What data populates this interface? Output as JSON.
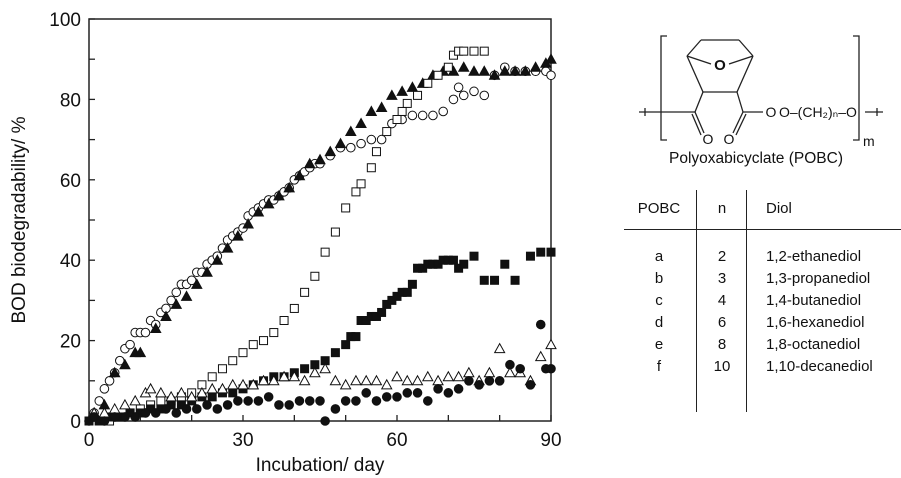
{
  "chart_data": {
    "type": "scatter",
    "xlabel": "Incubation/ day",
    "ylabel": "BOD biodegradability/ %",
    "xlim": [
      0,
      90
    ],
    "ylim": [
      0,
      100
    ],
    "x_ticks": [
      "0",
      "30",
      "60",
      "90"
    ],
    "y_ticks": [
      "0",
      "20",
      "40",
      "60",
      "80",
      "100"
    ],
    "grid": false,
    "legend": "none",
    "series": [
      {
        "marker": "open-circle",
        "points": [
          [
            0,
            0
          ],
          [
            1,
            2
          ],
          [
            2,
            5
          ],
          [
            3,
            8
          ],
          [
            4,
            10
          ],
          [
            5,
            12
          ],
          [
            6,
            15
          ],
          [
            7,
            18
          ],
          [
            8,
            19
          ],
          [
            9,
            22
          ],
          [
            10,
            22
          ],
          [
            11,
            22
          ],
          [
            12,
            25
          ],
          [
            13,
            24
          ],
          [
            14,
            27
          ],
          [
            15,
            28
          ],
          [
            16,
            30
          ],
          [
            17,
            32
          ],
          [
            18,
            34
          ],
          [
            19,
            34
          ],
          [
            20,
            35
          ],
          [
            21,
            37
          ],
          [
            22,
            37
          ],
          [
            23,
            39
          ],
          [
            24,
            40
          ],
          [
            25,
            41
          ],
          [
            26,
            43
          ],
          [
            27,
            45
          ],
          [
            28,
            46
          ],
          [
            29,
            47
          ],
          [
            30,
            48
          ],
          [
            31,
            51
          ],
          [
            32,
            52
          ],
          [
            33,
            53
          ],
          [
            34,
            54
          ],
          [
            35,
            55
          ],
          [
            36,
            55
          ],
          [
            37,
            56
          ],
          [
            38,
            57
          ],
          [
            39,
            58
          ],
          [
            40,
            60
          ],
          [
            41,
            61
          ],
          [
            42,
            62
          ],
          [
            43,
            63
          ],
          [
            44,
            64
          ],
          [
            45,
            64
          ],
          [
            47,
            66
          ],
          [
            49,
            68
          ],
          [
            51,
            68
          ],
          [
            53,
            69
          ],
          [
            55,
            70
          ],
          [
            57,
            70
          ],
          [
            59,
            74
          ],
          [
            61,
            75
          ],
          [
            63,
            76
          ],
          [
            65,
            76
          ],
          [
            67,
            76
          ],
          [
            69,
            77
          ],
          [
            71,
            80
          ],
          [
            72,
            83
          ],
          [
            73,
            81
          ],
          [
            75,
            82
          ],
          [
            77,
            81
          ],
          [
            79,
            86
          ],
          [
            81,
            88
          ],
          [
            83,
            87
          ],
          [
            85,
            87
          ],
          [
            87,
            87
          ],
          [
            89,
            87
          ],
          [
            90,
            86
          ]
        ]
      },
      {
        "marker": "filled-triangle",
        "points": [
          [
            1,
            2
          ],
          [
            3,
            4
          ],
          [
            5,
            12
          ],
          [
            7,
            14
          ],
          [
            9,
            17
          ],
          [
            10,
            17
          ],
          [
            13,
            23
          ],
          [
            15,
            26
          ],
          [
            17,
            29
          ],
          [
            19,
            31
          ],
          [
            21,
            34
          ],
          [
            23,
            37
          ],
          [
            25,
            40
          ],
          [
            27,
            43
          ],
          [
            29,
            46
          ],
          [
            31,
            49
          ],
          [
            33,
            52
          ],
          [
            35,
            54
          ],
          [
            37,
            56
          ],
          [
            39,
            58
          ],
          [
            41,
            61
          ],
          [
            43,
            64
          ],
          [
            45,
            65
          ],
          [
            47,
            67
          ],
          [
            49,
            69
          ],
          [
            51,
            72
          ],
          [
            53,
            74
          ],
          [
            55,
            77
          ],
          [
            57,
            78
          ],
          [
            59,
            81
          ],
          [
            61,
            82
          ],
          [
            63,
            83
          ],
          [
            65,
            84
          ],
          [
            67,
            86
          ],
          [
            69,
            87
          ],
          [
            71,
            87
          ],
          [
            73,
            88
          ],
          [
            75,
            87
          ],
          [
            77,
            87
          ],
          [
            79,
            86
          ],
          [
            81,
            87
          ],
          [
            83,
            87
          ],
          [
            85,
            87
          ],
          [
            87,
            88
          ],
          [
            89,
            89
          ],
          [
            90,
            90
          ]
        ]
      },
      {
        "marker": "open-square",
        "points": [
          [
            0,
            0
          ],
          [
            2,
            0
          ],
          [
            4,
            0
          ],
          [
            6,
            1
          ],
          [
            8,
            2
          ],
          [
            10,
            3
          ],
          [
            12,
            4
          ],
          [
            14,
            5
          ],
          [
            16,
            5
          ],
          [
            18,
            6
          ],
          [
            20,
            7
          ],
          [
            22,
            9
          ],
          [
            24,
            11
          ],
          [
            26,
            13
          ],
          [
            28,
            15
          ],
          [
            30,
            17
          ],
          [
            32,
            19
          ],
          [
            34,
            20
          ],
          [
            36,
            22
          ],
          [
            38,
            25
          ],
          [
            40,
            28
          ],
          [
            42,
            32
          ],
          [
            44,
            36
          ],
          [
            46,
            42
          ],
          [
            48,
            47
          ],
          [
            50,
            53
          ],
          [
            52,
            57
          ],
          [
            53,
            59
          ],
          [
            55,
            63
          ],
          [
            56,
            67
          ],
          [
            58,
            72
          ],
          [
            60,
            75
          ],
          [
            61,
            77
          ],
          [
            62,
            79
          ],
          [
            64,
            81
          ],
          [
            66,
            84
          ],
          [
            68,
            86
          ],
          [
            70,
            88
          ],
          [
            71,
            91
          ],
          [
            72,
            92
          ],
          [
            73,
            92
          ],
          [
            75,
            92
          ],
          [
            77,
            92
          ]
        ]
      },
      {
        "marker": "filled-square",
        "points": [
          [
            0,
            0
          ],
          [
            2,
            0
          ],
          [
            4,
            1
          ],
          [
            6,
            1
          ],
          [
            8,
            2
          ],
          [
            10,
            2
          ],
          [
            12,
            3
          ],
          [
            14,
            3
          ],
          [
            16,
            4
          ],
          [
            18,
            4
          ],
          [
            20,
            5
          ],
          [
            22,
            6
          ],
          [
            24,
            6
          ],
          [
            26,
            7
          ],
          [
            28,
            7
          ],
          [
            30,
            8
          ],
          [
            32,
            9
          ],
          [
            34,
            10
          ],
          [
            36,
            11
          ],
          [
            38,
            11
          ],
          [
            40,
            12
          ],
          [
            42,
            13
          ],
          [
            44,
            14
          ],
          [
            46,
            15
          ],
          [
            48,
            17
          ],
          [
            50,
            19
          ],
          [
            51,
            21
          ],
          [
            52,
            21
          ],
          [
            53,
            25
          ],
          [
            54,
            25
          ],
          [
            55,
            26
          ],
          [
            56,
            26
          ],
          [
            57,
            27
          ],
          [
            58,
            29
          ],
          [
            59,
            30
          ],
          [
            60,
            31
          ],
          [
            61,
            32
          ],
          [
            62,
            32
          ],
          [
            63,
            34
          ],
          [
            64,
            38
          ],
          [
            65,
            38
          ],
          [
            66,
            39
          ],
          [
            67,
            39
          ],
          [
            68,
            39
          ],
          [
            69,
            40
          ],
          [
            70,
            40
          ],
          [
            71,
            40
          ],
          [
            72,
            38
          ],
          [
            73,
            39
          ],
          [
            75,
            41
          ],
          [
            77,
            35
          ],
          [
            79,
            35
          ],
          [
            81,
            39
          ],
          [
            83,
            35
          ],
          [
            86,
            41
          ],
          [
            88,
            42
          ],
          [
            90,
            42
          ]
        ]
      },
      {
        "marker": "open-triangle",
        "points": [
          [
            1,
            2
          ],
          [
            3,
            2
          ],
          [
            5,
            3
          ],
          [
            7,
            4
          ],
          [
            9,
            5
          ],
          [
            11,
            7
          ],
          [
            12,
            8
          ],
          [
            14,
            7
          ],
          [
            16,
            6
          ],
          [
            18,
            7
          ],
          [
            20,
            6
          ],
          [
            22,
            7
          ],
          [
            24,
            8
          ],
          [
            26,
            8
          ],
          [
            28,
            9
          ],
          [
            30,
            9
          ],
          [
            32,
            9
          ],
          [
            34,
            10
          ],
          [
            36,
            10
          ],
          [
            38,
            11
          ],
          [
            40,
            11
          ],
          [
            42,
            10
          ],
          [
            44,
            12
          ],
          [
            46,
            13
          ],
          [
            48,
            10
          ],
          [
            50,
            9
          ],
          [
            52,
            10
          ],
          [
            54,
            10
          ],
          [
            56,
            10
          ],
          [
            58,
            9
          ],
          [
            60,
            11
          ],
          [
            62,
            10
          ],
          [
            64,
            10
          ],
          [
            66,
            11
          ],
          [
            68,
            10
          ],
          [
            70,
            11
          ],
          [
            72,
            11
          ],
          [
            74,
            12
          ],
          [
            76,
            10
          ],
          [
            78,
            12
          ],
          [
            80,
            18
          ],
          [
            82,
            12
          ],
          [
            84,
            12
          ],
          [
            86,
            10
          ],
          [
            88,
            16
          ],
          [
            90,
            19
          ]
        ]
      },
      {
        "marker": "filled-circle",
        "points": [
          [
            1,
            1
          ],
          [
            3,
            0
          ],
          [
            5,
            1
          ],
          [
            7,
            1
          ],
          [
            9,
            1
          ],
          [
            11,
            2
          ],
          [
            13,
            2
          ],
          [
            15,
            3
          ],
          [
            17,
            2
          ],
          [
            19,
            3
          ],
          [
            21,
            3
          ],
          [
            23,
            4
          ],
          [
            25,
            3
          ],
          [
            27,
            4
          ],
          [
            29,
            5
          ],
          [
            31,
            5
          ],
          [
            33,
            5
          ],
          [
            35,
            6
          ],
          [
            37,
            4
          ],
          [
            39,
            4
          ],
          [
            41,
            5
          ],
          [
            43,
            5
          ],
          [
            45,
            5
          ],
          [
            46,
            0
          ],
          [
            48,
            3
          ],
          [
            50,
            5
          ],
          [
            52,
            5
          ],
          [
            54,
            7
          ],
          [
            56,
            5
          ],
          [
            58,
            6
          ],
          [
            60,
            6
          ],
          [
            62,
            7
          ],
          [
            64,
            7
          ],
          [
            66,
            5
          ],
          [
            68,
            8
          ],
          [
            70,
            7
          ],
          [
            72,
            8
          ],
          [
            74,
            10
          ],
          [
            76,
            9
          ],
          [
            78,
            10
          ],
          [
            80,
            10
          ],
          [
            82,
            14
          ],
          [
            84,
            13
          ],
          [
            86,
            9
          ],
          [
            88,
            24
          ],
          [
            89,
            13
          ],
          [
            90,
            13
          ]
        ]
      }
    ]
  },
  "structure": {
    "fragment": "O–(CH₂)ₙ–O",
    "ring_o": "O",
    "carbonyl_o_1": "O",
    "carbonyl_o_2": "O",
    "ester_o": "O",
    "subscript": "m",
    "caption": "Polyoxabicyclate (POBC)"
  },
  "table": {
    "headers": [
      "POBC",
      "n",
      "Diol"
    ],
    "rows": [
      [
        "a",
        "2",
        "1,2-ethanediol"
      ],
      [
        "b",
        "3",
        "1,3-propanediol"
      ],
      [
        "c",
        "4",
        "1,4-butanediol"
      ],
      [
        "d",
        "6",
        "1,6-hexanediol"
      ],
      [
        "e",
        "8",
        "1,8-octanediol"
      ],
      [
        "f",
        "10",
        "1,10-decanediol"
      ]
    ]
  }
}
